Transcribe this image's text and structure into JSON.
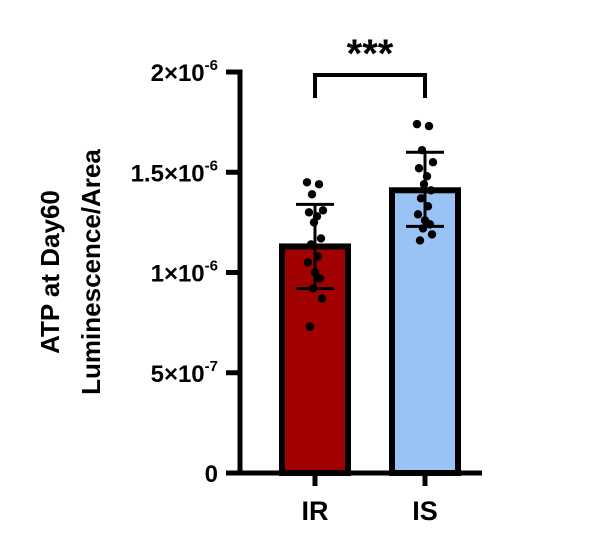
{
  "chart_data": {
    "type": "bar",
    "ylabel_line1": "ATP at Day60",
    "ylabel_line2": "Luminescence/Area",
    "ylim": [
      0,
      2e-06
    ],
    "yticks": [
      {
        "value": 0,
        "mant": "0",
        "exp": ""
      },
      {
        "value": 5e-07,
        "mant": "5×10",
        "exp": "-7"
      },
      {
        "value": 1e-06,
        "mant": "1×10",
        "exp": "-6"
      },
      {
        "value": 1.5e-06,
        "mant": "1.5×10",
        "exp": "-6"
      },
      {
        "value": 2e-06,
        "mant": "2×10",
        "exp": "-6"
      }
    ],
    "categories": [
      "IR",
      "IS"
    ],
    "bars": [
      {
        "category": "IR",
        "mean": 1.13e-06,
        "sd_low": 9.2e-07,
        "sd_high": 1.34e-06,
        "color": "#a00000",
        "points": [
          1.45e-06,
          1.44e-06,
          1.39e-06,
          1.31e-06,
          1.3e-06,
          1.28e-06,
          1.25e-06,
          1.17e-06,
          1.14e-06,
          1.08e-06,
          1.05e-06,
          1e-06,
          9.7e-07,
          9.2e-07,
          8.7e-07,
          7.3e-07
        ]
      },
      {
        "category": "IS",
        "mean": 1.41e-06,
        "sd_low": 1.23e-06,
        "sd_high": 1.6e-06,
        "color": "#99c2f5",
        "points": [
          1.74e-06,
          1.73e-06,
          1.61e-06,
          1.55e-06,
          1.52e-06,
          1.48e-06,
          1.44e-06,
          1.41e-06,
          1.37e-06,
          1.33e-06,
          1.29e-06,
          1.26e-06,
          1.24e-06,
          1.22e-06,
          1.19e-06,
          1.16e-06
        ]
      }
    ],
    "significance": {
      "label": "***",
      "between": [
        "IR",
        "IS"
      ]
    }
  }
}
